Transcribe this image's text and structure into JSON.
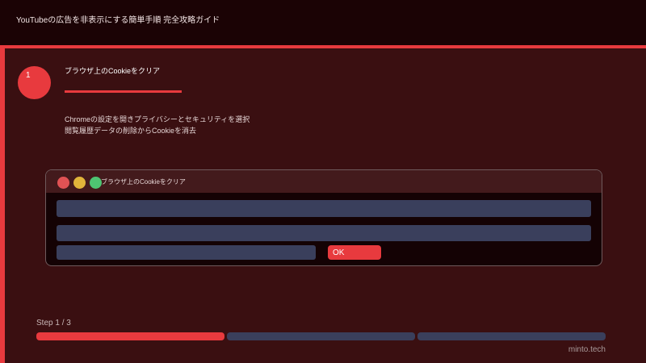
{
  "header": {
    "title": "YouTubeの広告を非表示にする簡単手順 完全攻略ガイド"
  },
  "step": {
    "number": "1",
    "title": "ブラウザ上のCookieをクリア",
    "description": [
      "Chromeの設定を開きプライバシーとセキュリティを選択",
      "閲覧履歴データの削除からCookieを消去"
    ]
  },
  "window": {
    "title": "ブラウザ上のCookieをクリア",
    "ok_label": "OK",
    "dot_colors": [
      "#e05254",
      "#e0b43a",
      "#4ec472"
    ]
  },
  "progress": {
    "label": "Step 1 / 3",
    "current": 1,
    "total": 3,
    "active_color": "#e83a3e",
    "inactive_color": "#3a3f5c"
  },
  "footer": {
    "brand": "minto.tech"
  }
}
